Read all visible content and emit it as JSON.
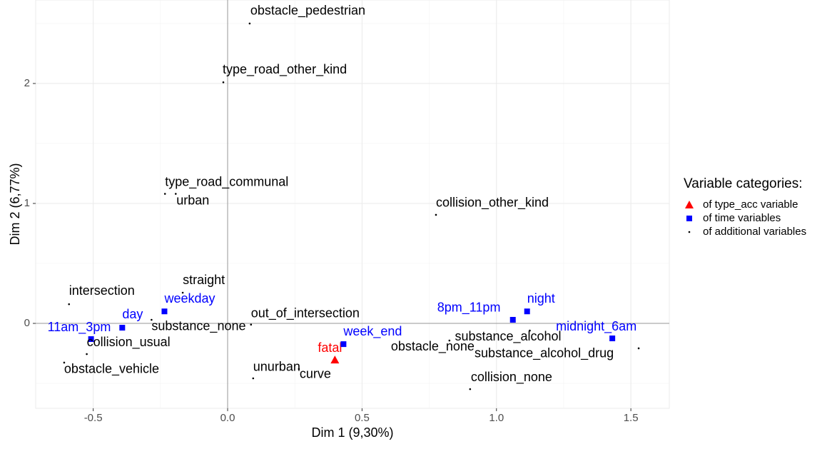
{
  "chart_data": {
    "type": "scatter",
    "xlabel": "Dim 1 (9,30%)",
    "ylabel": "Dim 2 (6,77%)",
    "xlim": [
      -0.714,
      1.643
    ],
    "ylim": [
      -0.708,
      2.696
    ],
    "xticks": [
      -0.5,
      {
        "value": 0,
        "label": "0.0"
      },
      0.5,
      {
        "value": 1,
        "label": "1.0"
      },
      1.5
    ],
    "yticks": [
      0,
      1,
      2
    ],
    "grid": true,
    "legend_title": "Variable categories:",
    "legend": "right",
    "series": [
      {
        "name": "of type_acc variable",
        "color": "#ff0000",
        "marker": "triangle",
        "labels": [
          "fatal"
        ],
        "x": [
          0.399
        ],
        "y": [
          -0.304
        ]
      },
      {
        "name": "of time variables",
        "color": "#0000ff",
        "marker": "square",
        "labels": [
          "weekday",
          "day",
          "11am_3pm",
          "week_end",
          "8pm_11pm",
          "night",
          "midnight_6am"
        ],
        "x": [
          -0.235,
          -0.392,
          -0.508,
          0.431,
          1.061,
          1.114,
          1.431
        ],
        "y": [
          0.1,
          -0.036,
          -0.131,
          -0.173,
          0.03,
          0.1,
          -0.125
        ]
      },
      {
        "name": "of additional variables",
        "color": "#000000",
        "marker": "dot",
        "labels": [
          "obstacle_pedestrian",
          "type_road_other_kind",
          "type_road_communal",
          "urban",
          "collision_other_kind",
          "straight",
          "intersection",
          "out_of_intersection",
          "substance_none",
          "collision_usual",
          "obstacle_vehicle",
          "unurban",
          "curve",
          "substance_alcohol",
          "obstacle_none",
          "substance_alcohol_drug",
          "collision_none"
        ],
        "x": [
          0.082,
          -0.016,
          -0.233,
          -0.193,
          0.775,
          -0.167,
          -0.59,
          0.087,
          -0.283,
          -0.524,
          -0.608,
          0.095,
          0.265,
          1.124,
          0.825,
          1.529,
          0.902
        ],
        "y": [
          2.5,
          2.01,
          1.08,
          1.08,
          0.905,
          0.256,
          0.16,
          -0.01,
          0.03,
          -0.256,
          -0.327,
          -0.458,
          -0.38,
          -0.06,
          -0.143,
          -0.208,
          -0.548
        ]
      }
    ]
  }
}
